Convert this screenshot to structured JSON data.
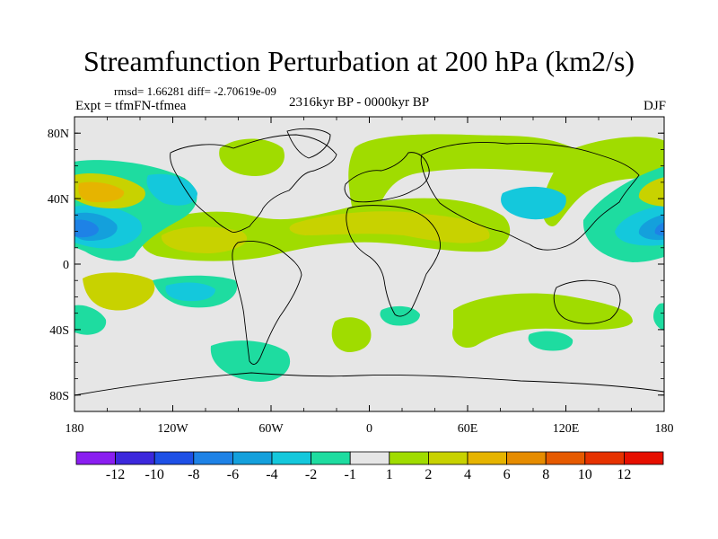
{
  "title": "Streamfunction Perturbation at 200 hPa (km2/s)",
  "stats": "rmsd= 1.66281 diff= -2.70619e-09",
  "experiment": "Expt = tfmFN-tfmea",
  "period": "2316kyr BP - 0000kyr BP",
  "season": "DJF",
  "map": {
    "projection": "cylindrical equidistant",
    "lon_range": [
      -180,
      180
    ],
    "lat_range": [
      -90,
      90
    ],
    "background_value_color": "#e6e6e6",
    "coast_color": "#000000"
  },
  "axes": {
    "y_ticks": [
      {
        "lat": 80,
        "label": "80N"
      },
      {
        "lat": 40,
        "label": "40N"
      },
      {
        "lat": 0,
        "label": "0"
      },
      {
        "lat": -40,
        "label": "40S"
      },
      {
        "lat": -80,
        "label": "80S"
      }
    ],
    "x_ticks": [
      {
        "lon": -180,
        "label": "180"
      },
      {
        "lon": -120,
        "label": "120W"
      },
      {
        "lon": -60,
        "label": "60W"
      },
      {
        "lon": 0,
        "label": "0"
      },
      {
        "lon": 60,
        "label": "60E"
      },
      {
        "lon": 120,
        "label": "120E"
      },
      {
        "lon": 180,
        "label": "180"
      }
    ]
  },
  "colorbar": {
    "colors": [
      "#8a1ef0",
      "#3c28dc",
      "#1e50e6",
      "#1e82e6",
      "#14a0dc",
      "#14c8dc",
      "#1edca0",
      "#e6e6e6",
      "#a0dc00",
      "#c8d200",
      "#e6b400",
      "#e68c00",
      "#e65a00",
      "#e63200",
      "#e60f00"
    ],
    "labels": [
      "-12",
      "-10",
      "-8",
      "-6",
      "-4",
      "-2",
      "-1",
      "1",
      "2",
      "4",
      "6",
      "8",
      "10",
      "12"
    ]
  },
  "chart_data": {
    "type": "contour-map",
    "title": "Streamfunction Perturbation at 200 hPa (km2/s)",
    "variable": "streamfunction perturbation",
    "units": "km2/s",
    "level": "200 hPa",
    "season": "DJF",
    "levels": [
      -12,
      -10,
      -8,
      -6,
      -4,
      -2,
      -1,
      1,
      2,
      4,
      6,
      8,
      10,
      12
    ],
    "features": [
      {
        "lon": -175,
        "lat": 22,
        "value": -10
      },
      {
        "lon": 178,
        "lat": 22,
        "value": -8
      },
      {
        "lon": -172,
        "lat": 45,
        "value": 6
      },
      {
        "lon": 178,
        "lat": 45,
        "value": 4
      },
      {
        "lon": -125,
        "lat": 15,
        "value": 4
      },
      {
        "lon": -30,
        "lat": 25,
        "value": 4
      },
      {
        "lon": 30,
        "lat": 25,
        "value": 4
      },
      {
        "lon": -150,
        "lat": -15,
        "value": 4
      },
      {
        "lon": -145,
        "lat": 40,
        "value": -4
      },
      {
        "lon": 120,
        "lat": 40,
        "value": -2
      },
      {
        "lon": -120,
        "lat": -17,
        "value": -2
      },
      {
        "lon": -80,
        "lat": 80,
        "value": 2
      },
      {
        "lon": 10,
        "lat": 75,
        "value": 2
      },
      {
        "lon": 120,
        "lat": 75,
        "value": 2
      },
      {
        "lon": 80,
        "lat": -40,
        "value": 2
      },
      {
        "lon": -10,
        "lat": -45,
        "value": 2
      },
      {
        "lon": 35,
        "lat": -35,
        "value": -2
      },
      {
        "lon": 110,
        "lat": -55,
        "value": -2
      },
      {
        "lon": -90,
        "lat": -60,
        "value": -2
      },
      {
        "lon": -165,
        "lat": -35,
        "value": -2
      },
      {
        "lon": -80,
        "lat": -45,
        "value": 2
      }
    ]
  }
}
